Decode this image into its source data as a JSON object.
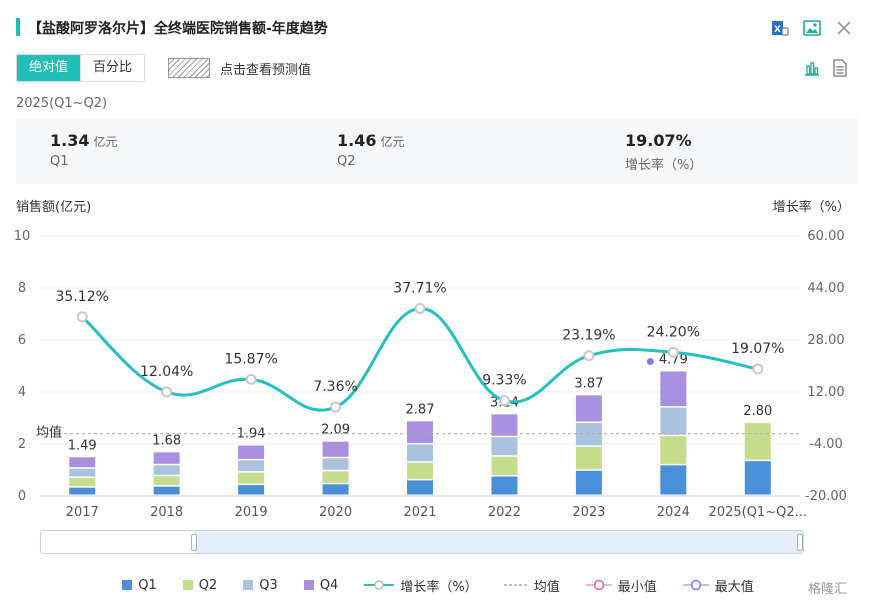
{
  "header": {
    "title": "【盐酸阿罗洛尔片】全终端医院销售额-年度趋势"
  },
  "toggle": {
    "absolute_label": "绝对值",
    "percent_label": "百分比"
  },
  "forecast_label": "点击查看预测值",
  "period": "2025(Q1~Q2)",
  "summary": [
    {
      "value": "1.34",
      "unit": "亿元",
      "label": "Q1"
    },
    {
      "value": "1.46",
      "unit": "亿元",
      "label": "Q2"
    },
    {
      "value": "19.07%",
      "unit": "",
      "label": "增长率（%）"
    }
  ],
  "axis": {
    "left_title": "销售额(亿元)",
    "right_title": "增长率（%）"
  },
  "avg_label": "均值",
  "legend": {
    "q1": "Q1",
    "q2": "Q2",
    "q3": "Q3",
    "q4": "Q4",
    "growth": "增长率（%）",
    "avg": "均值",
    "min": "最小值",
    "max": "最大值"
  },
  "watermark": "格隆汇",
  "colors": {
    "q1": "#4a90d9",
    "q2": "#c4dc8c",
    "q3": "#a9c2de",
    "q4": "#a98fe0",
    "growth": "#26bfbf",
    "avg": "#aaaaaa",
    "min": "#e06b8b",
    "max": "#7b7fe0"
  },
  "chart_data": {
    "type": "bar",
    "stacked": true,
    "categories": [
      "2017",
      "2018",
      "2019",
      "2020",
      "2021",
      "2022",
      "2023",
      "2024",
      "2025(Q1~Q2..."
    ],
    "totals": [
      1.49,
      1.68,
      1.94,
      2.09,
      2.87,
      3.14,
      3.87,
      4.79,
      2.8
    ],
    "totals_labels": [
      "1.49",
      "1.68",
      "1.94",
      "2.09",
      "2.87",
      "3.14",
      "3.87",
      "4.79",
      "2.80"
    ],
    "series": [
      {
        "name": "Q1",
        "values": [
          0.32,
          0.36,
          0.42,
          0.45,
          0.6,
          0.75,
          0.97,
          1.18,
          1.34
        ]
      },
      {
        "name": "Q2",
        "values": [
          0.37,
          0.4,
          0.48,
          0.5,
          0.68,
          0.76,
          0.92,
          1.12,
          1.46
        ]
      },
      {
        "name": "Q3",
        "values": [
          0.36,
          0.42,
          0.47,
          0.5,
          0.7,
          0.75,
          0.92,
          1.1,
          0
        ]
      },
      {
        "name": "Q4",
        "values": [
          0.44,
          0.5,
          0.57,
          0.64,
          0.89,
          0.88,
          1.06,
          1.39,
          0
        ]
      }
    ],
    "growth": {
      "name": "增长率（%）",
      "values": [
        35.12,
        12.04,
        15.87,
        7.36,
        37.71,
        9.33,
        23.19,
        24.2,
        19.07
      ],
      "labels": [
        "35.12%",
        "12.04%",
        "15.87%",
        "7.36%",
        "37.71%",
        "9.33%",
        "23.19%",
        "24.20%",
        "19.07%"
      ]
    },
    "average": 2.4,
    "ylim_left": [
      0,
      10
    ],
    "yticks_left": [
      "0",
      "2",
      "4",
      "6",
      "8",
      "10"
    ],
    "ylim_right": [
      -20,
      60
    ],
    "yticks_right": [
      "-20.00",
      "-4.00",
      "12.00",
      "28.00",
      "44.00",
      "60.00"
    ],
    "grid": true,
    "legend_position": "bottom"
  }
}
